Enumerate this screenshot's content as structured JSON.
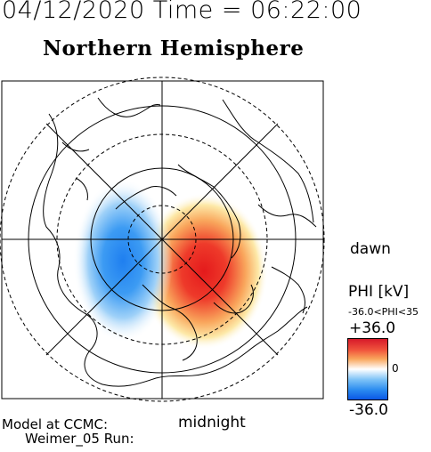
{
  "header": {
    "timestamp": "04/12/2020 Time = 06:22:00",
    "hemisphere_title": "Northern Hemisphere"
  },
  "map": {
    "projection": "polar",
    "dawn_label": "dawn",
    "midnight_label": "midnight",
    "center_latitude": 90,
    "circle_latitudes": [
      80,
      70,
      60,
      50,
      40
    ]
  },
  "colorbar": {
    "label": "PHI [kV]",
    "range_text": "-36.0<PHI<35",
    "max_label": "+36.0",
    "min_label": "-36.0",
    "zero_tick": "0",
    "colors": {
      "positive": "#e41a1c",
      "negative": "#1f7ff0",
      "zero": "#ffffff"
    }
  },
  "footer": {
    "model_label": "Model at CCMC:",
    "run_label": "Weimer_05 Run:"
  }
}
